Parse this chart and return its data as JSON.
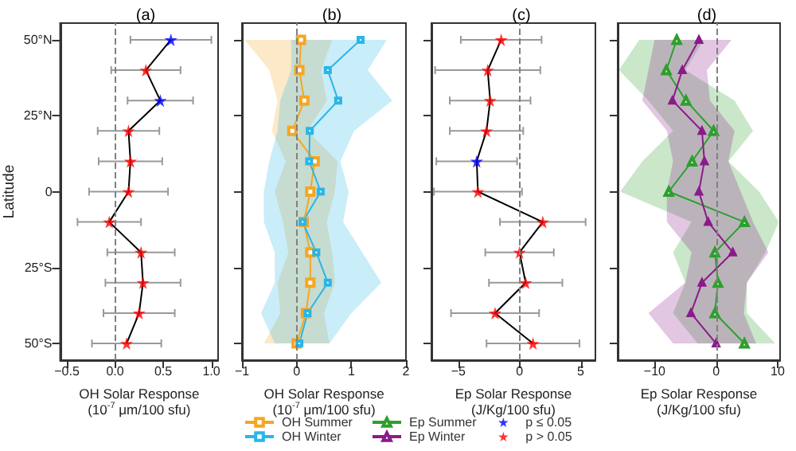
{
  "chart_data": [
    {
      "type": "line",
      "orientation": "horizontal",
      "title": "(a)",
      "xlabel": "OH Solar Response\n(10$^{-7}$ μm/100 sfu)",
      "ylabel": "Latitude",
      "xlim": [
        -0.57,
        1.07
      ],
      "xticks": [
        {
          "value": -0.5,
          "label": "−0.5"
        },
        {
          "value": 0,
          "label": "0.0"
        },
        {
          "value": 0.5,
          "label": "0.5"
        },
        {
          "value": 1,
          "label": "1.0"
        }
      ],
      "ylim": [
        -55.5,
        55.5
      ],
      "yticks": [
        {
          "value": -50,
          "label": "50°S"
        },
        {
          "value": -25,
          "label": "25°S"
        },
        0,
        {
          "value": 25,
          "label": "25°N"
        },
        {
          "value": 50,
          "label": "50°N"
        }
      ],
      "grid": false,
      "legend": false,
      "ref_lines": [
        {
          "axis": "x",
          "value": 0,
          "color": "#808080",
          "line_style": "dashed"
        }
      ],
      "series": [
        {
          "color": "#000000",
          "marker": "none",
          "x": [
            50,
            40,
            30,
            20,
            10,
            0,
            -10,
            -20,
            -30,
            -40,
            -50
          ],
          "values": [
            0.58,
            0.32,
            0.47,
            0.14,
            0.16,
            0.14,
            -0.06,
            0.27,
            0.29,
            0.25,
            0.12
          ],
          "errors": [
            0.42,
            0.36,
            0.34,
            0.32,
            0.33,
            0.41,
            0.33,
            0.35,
            0.39,
            0.37,
            0.36
          ]
        },
        {
          "type": "scatter",
          "color": "#0000ff",
          "marker": "star",
          "x": [
            50,
            30
          ],
          "values": [
            0.58,
            0.47
          ]
        },
        {
          "type": "scatter",
          "color": "#ff0000",
          "marker": "star",
          "x": [
            40,
            20,
            10,
            0,
            -10,
            -20,
            -30,
            -40,
            -50
          ],
          "values": [
            0.32,
            0.14,
            0.16,
            0.14,
            -0.06,
            0.27,
            0.29,
            0.25,
            0.12
          ]
        }
      ]
    },
    {
      "type": "line",
      "orientation": "horizontal",
      "title": "(b)",
      "xlabel": "OH Solar Response\n(10$^{-7}$ μm/100 sfu)",
      "xlim": [
        -1,
        2
      ],
      "xticks": [
        {
          "value": -1,
          "label": "−1"
        },
        0,
        1,
        2
      ],
      "ylim": [
        -55.5,
        55.5
      ],
      "yticks": [
        -50,
        -25,
        0,
        25,
        50
      ],
      "tick_labels": "x",
      "grid": false,
      "legend": "bottom",
      "ref_lines": [
        {
          "axis": "x",
          "value": 0,
          "color": "#808080",
          "line_style": "dashed"
        }
      ],
      "series": [
        {
          "name": "OH Summer",
          "color": "#f5a623",
          "marker": "square",
          "x": [
            50,
            40,
            30,
            20,
            10,
            0,
            -10,
            -20,
            -30,
            -40,
            -50
          ],
          "values": [
            0.08,
            0.05,
            0.14,
            -0.08,
            0.33,
            0.25,
            0.13,
            0.25,
            0.25,
            0.17,
            0.0
          ],
          "lower": [
            -0.95,
            -0.5,
            -0.35,
            -0.45,
            -0.2,
            -0.4,
            -0.25,
            -0.15,
            -0.35,
            -0.3,
            -0.6
          ],
          "upper": [
            0.65,
            0.45,
            0.55,
            0.2,
            0.75,
            0.7,
            0.55,
            0.65,
            0.7,
            0.5,
            0.6
          ]
        },
        {
          "name": "OH Winter",
          "color": "#29b6e8",
          "marker": "square",
          "x": [
            50,
            40,
            30,
            20,
            10,
            0,
            -10,
            -20,
            -30,
            -40,
            -50
          ],
          "values": [
            1.17,
            0.57,
            0.76,
            0.24,
            0.23,
            0.44,
            0.11,
            0.36,
            0.57,
            0.2,
            0.05
          ],
          "lower": [
            -0.1,
            -0.1,
            -0.3,
            -0.35,
            -0.5,
            -0.6,
            -0.6,
            -0.4,
            -0.4,
            -0.65,
            -0.4
          ],
          "upper": [
            1.65,
            1.3,
            1.75,
            1.05,
            0.8,
            0.95,
            0.85,
            1.2,
            1.55,
            1.0,
            0.6
          ]
        }
      ]
    },
    {
      "type": "line",
      "orientation": "horizontal",
      "title": "(c)",
      "xlabel": "Ep Solar Response\n(J/Kg/100 sfu)",
      "xlim": [
        -7.2,
        6.2
      ],
      "xticks": [
        {
          "value": -5,
          "label": "−5"
        },
        0,
        5
      ],
      "ylim": [
        -55.5,
        55.5
      ],
      "yticks": [
        -50,
        -25,
        0,
        25,
        50
      ],
      "tick_labels": "x",
      "grid": false,
      "legend": "bottom",
      "ref_lines": [
        {
          "axis": "x",
          "value": 0,
          "color": "#808080",
          "line_style": "dashed"
        }
      ],
      "series": [
        {
          "color": "#000000",
          "marker": "none",
          "x": [
            50,
            40,
            30,
            20,
            10,
            0,
            -10,
            -20,
            -30,
            -40,
            -50
          ],
          "values": [
            -1.5,
            -2.6,
            -2.4,
            -2.7,
            -3.5,
            -3.4,
            1.9,
            0.0,
            0.5,
            -2.0,
            1.1
          ],
          "errors": [
            3.3,
            4.3,
            3.3,
            3.0,
            3.3,
            3.6,
            3.5,
            2.8,
            3.0,
            3.6,
            3.8
          ]
        },
        {
          "type": "scatter",
          "name": "p ≤ 0.05",
          "color": "#0000ff",
          "marker": "star",
          "x": [
            10
          ],
          "values": [
            -3.5
          ]
        },
        {
          "type": "scatter",
          "name": "p > 0.05",
          "color": "#ff0000",
          "marker": "star",
          "x": [
            50,
            40,
            30,
            20,
            0,
            -10,
            -20,
            -30,
            -40,
            -50
          ],
          "values": [
            -1.5,
            -2.6,
            -2.4,
            -2.7,
            -3.4,
            1.9,
            0.0,
            0.5,
            -2.0,
            1.1
          ]
        }
      ]
    },
    {
      "type": "line",
      "orientation": "horizontal",
      "title": "(d)",
      "xlabel": "Ep Solar Response\n(J/Kg/100 sfu)",
      "xlim": [
        -16,
        10.4
      ],
      "xticks": [
        {
          "value": -10,
          "label": "−10"
        },
        0,
        10
      ],
      "ylim": [
        -55.5,
        55.5
      ],
      "yticks": [
        -50,
        -25,
        0,
        25,
        50
      ],
      "tick_labels": "x",
      "grid": false,
      "legend": "bottom",
      "ref_lines": [
        {
          "axis": "x",
          "value": 0,
          "color": "#808080",
          "line_style": "dashed"
        }
      ],
      "series": [
        {
          "name": "Ep Summer",
          "color": "#2ca02c",
          "marker": "triangle",
          "x": [
            50,
            40,
            30,
            20,
            10,
            0,
            -10,
            -20,
            -30,
            -40,
            -50
          ],
          "values": [
            -6.4,
            -8.1,
            -4.9,
            -0.4,
            -3.9,
            -7.7,
            4.6,
            -0.2,
            0.3,
            -0.2,
            4.6
          ],
          "lower": [
            -12.5,
            -15.8,
            -11,
            -7,
            -12,
            -15.6,
            -4,
            -7,
            -5,
            -7,
            -3
          ],
          "upper": [
            -2,
            -5,
            3,
            6,
            2,
            7,
            10.2,
            8,
            5,
            5,
            9.6
          ]
        },
        {
          "name": "Ep Winter",
          "color": "#8b1a8b",
          "marker": "triangle",
          "x": [
            50,
            40,
            30,
            20,
            10,
            0,
            -10,
            -20,
            -30,
            -40,
            -50
          ],
          "values": [
            -2.8,
            -5.5,
            -7.1,
            -2.3,
            -1.9,
            -2.8,
            -1.3,
            2.7,
            -2.3,
            -4.1,
            0.0
          ],
          "lower": [
            -10,
            -11,
            -12,
            -8,
            -7,
            -8,
            -8,
            -4,
            -5,
            -11,
            -7
          ],
          "upper": [
            2.5,
            -1.5,
            -1,
            3,
            2,
            4,
            6,
            8.5,
            5,
            4.5,
            6.5
          ]
        }
      ]
    }
  ]
}
